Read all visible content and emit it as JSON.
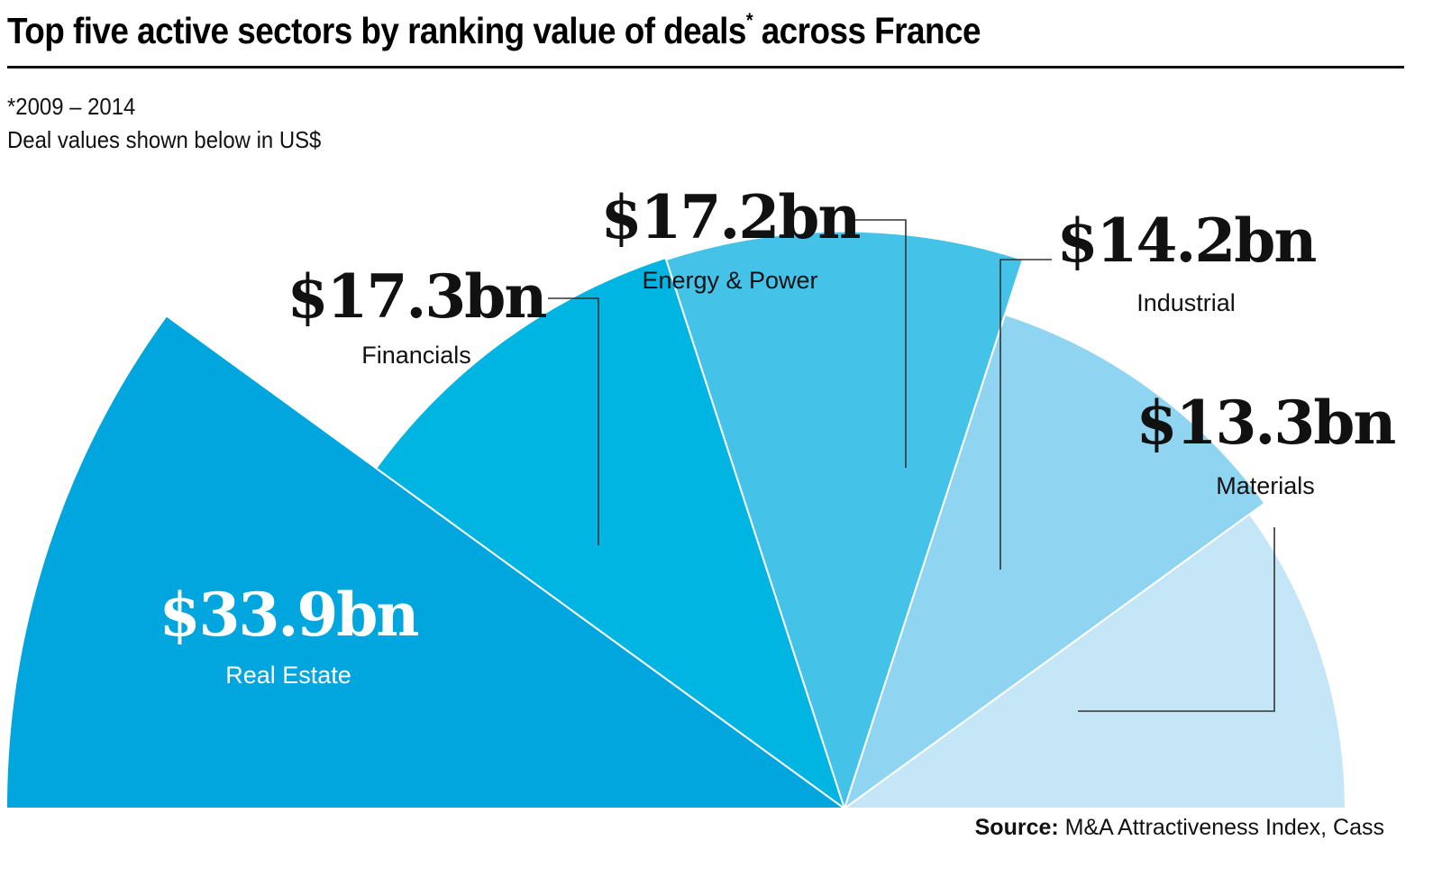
{
  "header": {
    "title": "Top five active sectors by ranking value of deals",
    "title_marker": "*",
    "title_suffix": " across France",
    "note_period": "*2009 – 2014",
    "note_units": "Deal values shown below in US$"
  },
  "footer": {
    "source_label": "Source:",
    "source_text": " M&A Attractiveness Index, Cass"
  },
  "chart_data": {
    "type": "pie",
    "variant": "polar-area (half rose)",
    "title": "Top five active sectors by ranking value of deals across France",
    "subtitle": "2009 – 2014, deal values in US$",
    "unit": "US$ bn",
    "categories": [
      "Real Estate",
      "Financials",
      "Energy & Power",
      "Industrial",
      "Materials"
    ],
    "values": [
      33.9,
      17.3,
      17.2,
      14.2,
      13.3
    ],
    "value_labels": [
      "$33.9bn",
      "$17.3bn",
      "$17.2bn",
      "$14.2bn",
      "$13.3bn"
    ],
    "colors": [
      "#00a6dd",
      "#00b5e2",
      "#45c2e8",
      "#8fd4f0",
      "#c5e6f6"
    ],
    "label_colors": [
      "#ffffff",
      "#111111",
      "#111111",
      "#111111",
      "#111111"
    ],
    "legend": "none (direct labels)"
  }
}
